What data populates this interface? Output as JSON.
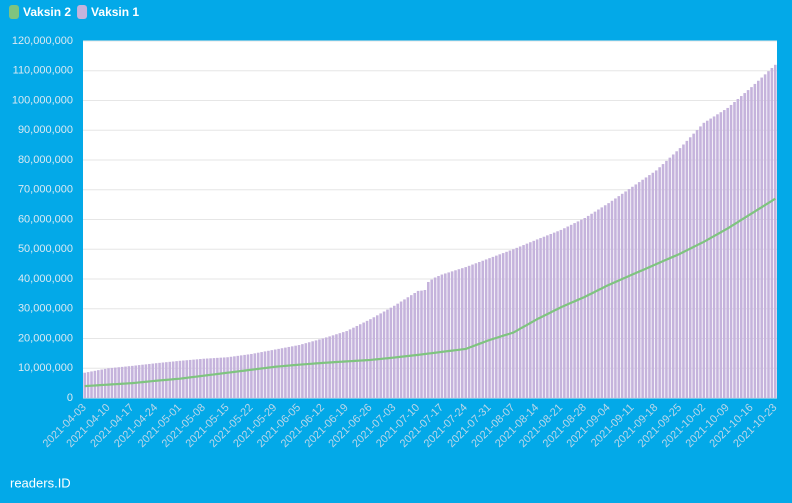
{
  "chart_data": {
    "type": "bar",
    "categories": [
      "2021-04-03",
      null,
      null,
      null,
      null,
      null,
      null,
      "2021-04-10",
      null,
      null,
      null,
      null,
      null,
      null,
      "2021-04-17",
      null,
      null,
      null,
      null,
      null,
      null,
      "2021-04-24",
      null,
      null,
      null,
      null,
      null,
      null,
      "2021-05-01",
      null,
      null,
      null,
      null,
      null,
      null,
      "2021-05-08",
      null,
      null,
      null,
      null,
      null,
      null,
      "2021-05-15",
      null,
      null,
      null,
      null,
      null,
      null,
      "2021-05-22",
      null,
      null,
      null,
      null,
      null,
      null,
      "2021-05-29",
      null,
      null,
      null,
      null,
      null,
      null,
      "2021-06-05",
      null,
      null,
      null,
      null,
      null,
      null,
      "2021-06-12",
      null,
      null,
      null,
      null,
      null,
      null,
      "2021-06-19",
      null,
      null,
      null,
      null,
      null,
      null,
      "2021-06-26",
      null,
      null,
      null,
      null,
      null,
      null,
      "2021-07-03",
      null,
      null,
      null,
      null,
      null,
      null,
      "2021-07-10",
      null,
      null,
      null,
      null,
      null,
      null,
      "2021-07-17",
      null,
      null,
      null,
      null,
      null,
      null,
      "2021-07-24",
      null,
      null,
      null,
      null,
      null,
      null,
      "2021-07-31",
      null,
      null,
      null,
      null,
      null,
      null,
      "2021-08-07",
      null,
      null,
      null,
      null,
      null,
      null,
      "2021-08-14",
      null,
      null,
      null,
      null,
      null,
      null,
      "2021-08-21",
      null,
      null,
      null,
      null,
      null,
      null,
      "2021-08-28",
      null,
      null,
      null,
      null,
      null,
      null,
      "2021-09-04",
      null,
      null,
      null,
      null,
      null,
      null,
      "2021-09-11",
      null,
      null,
      null,
      null,
      null,
      null,
      "2021-09-18",
      null,
      null,
      null,
      null,
      null,
      null,
      "2021-09-25",
      null,
      null,
      null,
      null,
      null,
      null,
      "2021-10-02",
      null,
      null,
      null,
      null,
      null,
      null,
      "2021-10-09",
      null,
      null,
      null,
      null,
      null,
      null,
      "2021-10-16",
      null,
      null,
      null,
      null,
      null,
      null,
      "2021-10-23"
    ],
    "series": [
      {
        "name": "Vaksin 2",
        "type": "line",
        "color": "#7fc47f",
        "values": [
          4000000,
          4070000,
          4140000,
          4210000,
          4290000,
          4360000,
          4430000,
          4500000,
          4570000,
          4640000,
          4710000,
          4790000,
          4860000,
          4930000,
          5000000,
          5110000,
          5230000,
          5340000,
          5460000,
          5570000,
          5690000,
          5800000,
          5900000,
          6000000,
          6100000,
          6200000,
          6300000,
          6400000,
          6500000,
          6640000,
          6790000,
          6930000,
          7070000,
          7210000,
          7360000,
          7500000,
          7640000,
          7790000,
          7930000,
          8070000,
          8210000,
          8360000,
          8500000,
          8640000,
          8790000,
          8930000,
          9070000,
          9210000,
          9360000,
          9500000,
          9640000,
          9790000,
          9930000,
          10070000,
          10210000,
          10360000,
          10500000,
          10600000,
          10700000,
          10800000,
          10900000,
          11000000,
          11100000,
          11200000,
          11290000,
          11370000,
          11460000,
          11540000,
          11630000,
          11710000,
          11800000,
          11870000,
          11940000,
          12010000,
          12090000,
          12160000,
          12230000,
          12300000,
          12370000,
          12440000,
          12510000,
          12590000,
          12660000,
          12730000,
          12800000,
          12910000,
          13030000,
          13140000,
          13260000,
          13370000,
          13490000,
          13600000,
          13730000,
          13860000,
          13990000,
          14110000,
          14240000,
          14370000,
          14500000,
          14640000,
          14790000,
          14930000,
          15070000,
          15210000,
          15360000,
          15500000,
          15640000,
          15790000,
          15930000,
          16070000,
          16210000,
          16360000,
          16500000,
          16930000,
          17360000,
          17790000,
          18210000,
          18640000,
          19070000,
          19500000,
          19860000,
          20210000,
          20570000,
          20930000,
          21290000,
          21640000,
          22000000,
          22640000,
          23290000,
          23930000,
          24570000,
          25210000,
          25860000,
          26500000,
          27070000,
          27640000,
          28210000,
          28790000,
          29360000,
          29930000,
          30500000,
          31000000,
          31500000,
          32000000,
          32500000,
          33000000,
          33500000,
          34000000,
          34570000,
          35140000,
          35710000,
          36290000,
          36860000,
          37430000,
          38000000,
          38500000,
          39000000,
          39500000,
          40000000,
          40500000,
          41000000,
          41500000,
          42000000,
          42500000,
          43000000,
          43500000,
          44000000,
          44500000,
          45000000,
          45500000,
          46000000,
          46500000,
          47000000,
          47500000,
          48000000,
          48500000,
          49070000,
          49640000,
          50210000,
          50790000,
          51360000,
          51930000,
          52500000,
          53140000,
          53790000,
          54430000,
          55070000,
          55710000,
          56360000,
          57000000,
          57710000,
          58430000,
          59140000,
          59860000,
          60570000,
          61290000,
          62000000,
          62710000,
          63430000,
          64140000,
          64860000,
          65570000,
          66290000,
          67000000
        ]
      },
      {
        "name": "Vaksin 1",
        "type": "bar",
        "color": "#c5b3dc",
        "values": [
          8500000,
          8710000,
          8930000,
          9140000,
          9360000,
          9570000,
          9790000,
          10000000,
          10110000,
          10230000,
          10340000,
          10460000,
          10570000,
          10690000,
          10800000,
          10930000,
          11060000,
          11190000,
          11310000,
          11440000,
          11570000,
          11700000,
          11810000,
          11930000,
          12040000,
          12160000,
          12270000,
          12390000,
          12500000,
          12600000,
          12700000,
          12800000,
          12900000,
          13000000,
          13100000,
          13200000,
          13270000,
          13340000,
          13410000,
          13490000,
          13560000,
          13630000,
          13700000,
          13860000,
          14010000,
          14170000,
          14330000,
          14490000,
          14640000,
          14800000,
          15010000,
          15230000,
          15440000,
          15660000,
          15870000,
          16090000,
          16300000,
          16510000,
          16730000,
          16940000,
          17160000,
          17370000,
          17590000,
          17800000,
          18110000,
          18430000,
          18740000,
          19060000,
          19370000,
          19690000,
          20000000,
          20360000,
          20710000,
          21070000,
          21430000,
          21790000,
          22140000,
          22500000,
          23070000,
          23640000,
          24210000,
          24790000,
          25360000,
          25930000,
          26500000,
          27140000,
          27790000,
          28430000,
          29070000,
          29710000,
          30360000,
          31000000,
          31710000,
          32430000,
          33140000,
          33860000,
          34570000,
          35290000,
          36000000,
          36100000,
          36300000,
          39000000,
          39800000,
          40500000,
          41000000,
          41500000,
          41860000,
          42210000,
          42570000,
          42930000,
          43290000,
          43640000,
          44000000,
          44430000,
          44860000,
          45290000,
          45710000,
          46140000,
          46570000,
          47000000,
          47430000,
          47860000,
          48290000,
          48710000,
          49140000,
          49570000,
          50000000,
          50470000,
          50940000,
          51410000,
          51890000,
          52360000,
          52830000,
          53300000,
          53760000,
          54210000,
          54670000,
          55130000,
          55590000,
          56040000,
          56500000,
          57070000,
          57640000,
          58210000,
          58790000,
          59360000,
          59930000,
          60500000,
          61210000,
          61930000,
          62640000,
          63360000,
          64070000,
          64790000,
          65500000,
          66290000,
          67070000,
          67860000,
          68640000,
          69430000,
          70210000,
          71000000,
          71790000,
          72570000,
          73360000,
          74140000,
          74930000,
          75710000,
          76500000,
          77570000,
          78640000,
          79710000,
          80790000,
          81860000,
          82930000,
          84000000,
          85210000,
          86430000,
          87640000,
          88860000,
          90070000,
          91290000,
          92500000,
          93210000,
          93930000,
          94640000,
          95360000,
          96070000,
          96790000,
          97500000,
          98500000,
          99500000,
          100500000,
          101500000,
          102500000,
          103500000,
          104500000,
          105570000,
          106640000,
          107710000,
          108790000,
          109860000,
          110930000,
          112000000
        ]
      }
    ],
    "ylim": [
      0,
      120000000
    ],
    "yticks": [
      0,
      {
        "value": 10000000,
        "label": "10,000,000"
      },
      {
        "value": 20000000,
        "label": "20,000,000"
      },
      {
        "value": 30000000,
        "label": "30,000,000"
      },
      {
        "value": 40000000,
        "label": "40,000,000"
      },
      {
        "value": 50000000,
        "label": "50,000,000"
      },
      {
        "value": 60000000,
        "label": "60,000,000"
      },
      {
        "value": 70000000,
        "label": "70,000,000"
      },
      {
        "value": 80000000,
        "label": "80,000,000"
      },
      {
        "value": 90000000,
        "label": "90,000,000"
      },
      {
        "value": 100000000,
        "label": "100,000,000"
      },
      {
        "value": 110000000,
        "label": "110,000,000"
      },
      {
        "value": 120000000,
        "label": "120,000,000"
      }
    ],
    "grid": true,
    "legend": "top-left",
    "footer": "readers.ID"
  }
}
